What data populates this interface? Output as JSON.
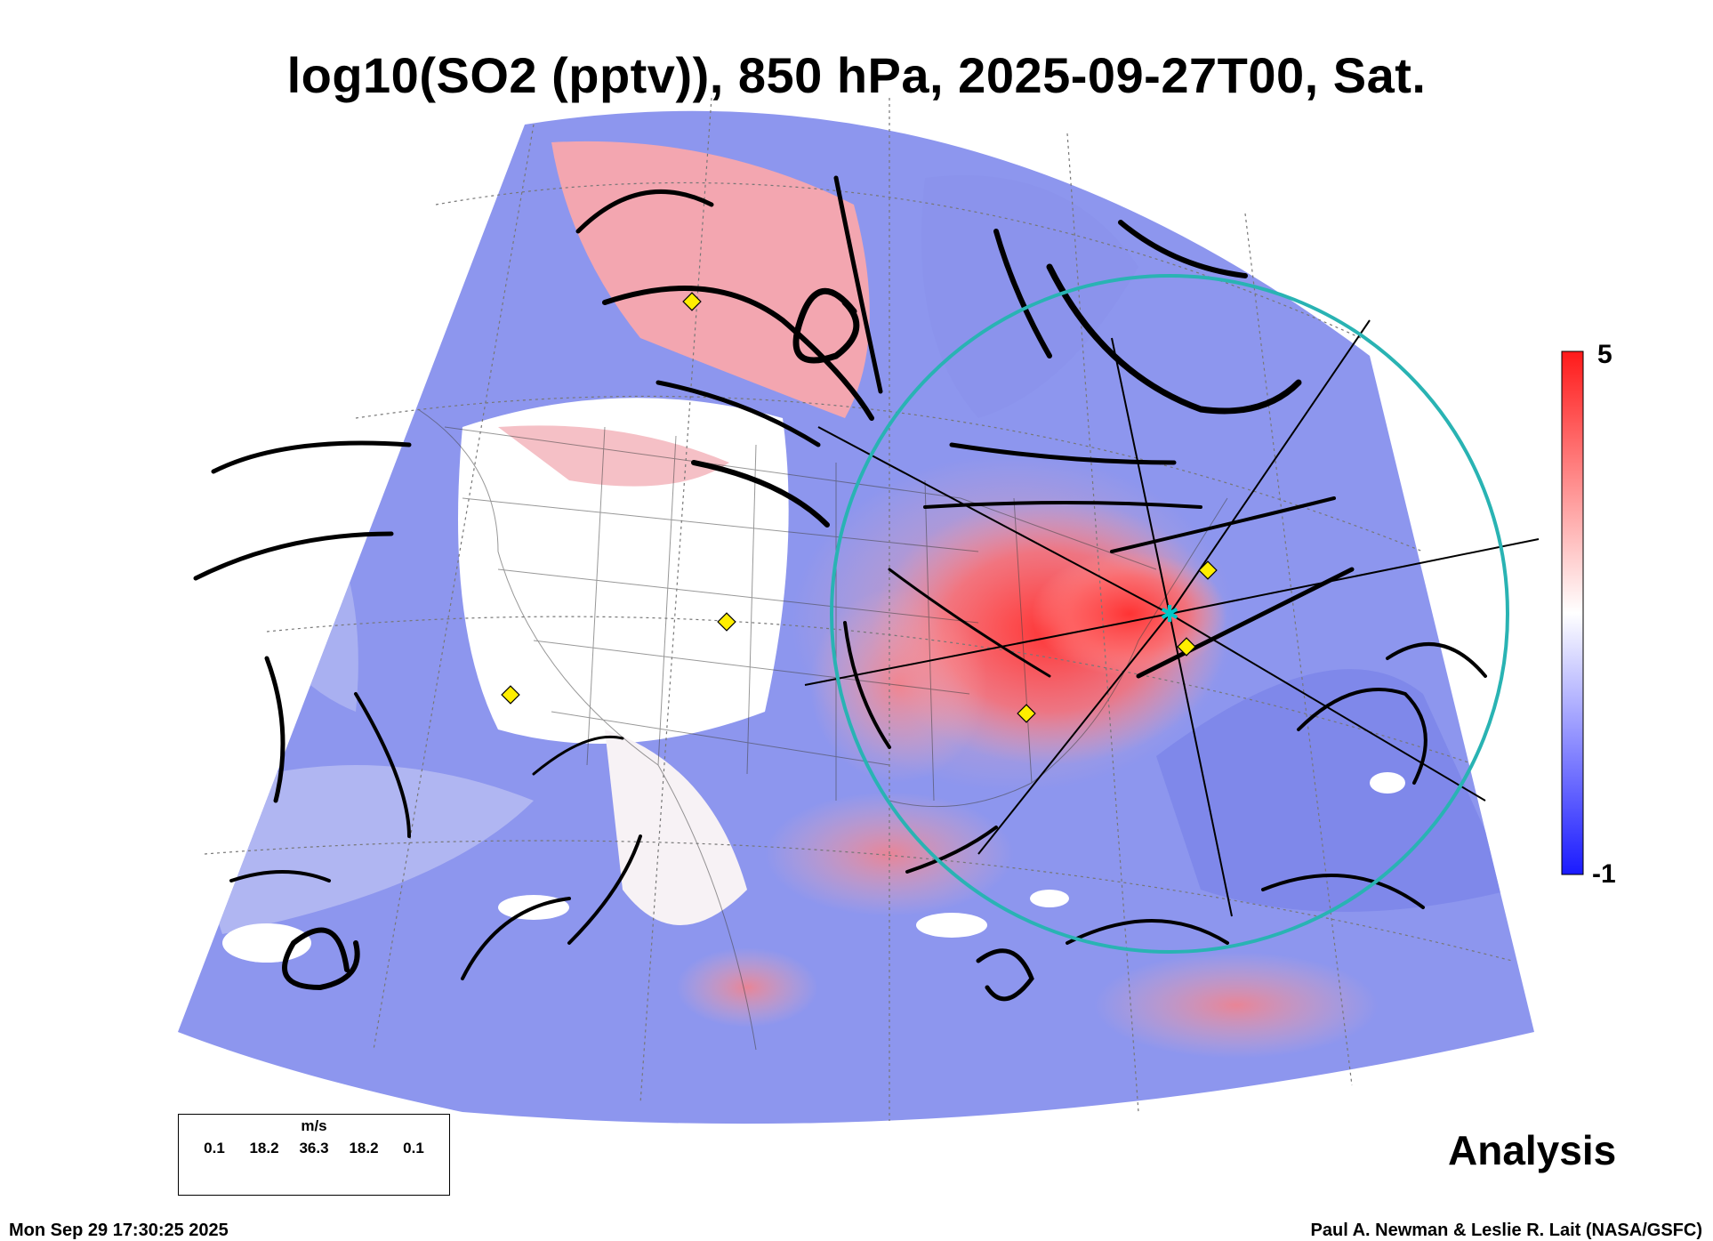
{
  "title": "log10(SO2 (pptv)), 850 hPa, 2025-09-27T00, Sat.",
  "colorbar": {
    "max_label": "5",
    "min_label": "-1",
    "colors": {
      "top": "#ff1a1a",
      "mid": "#ffffff",
      "bottom": "#1a1aff"
    }
  },
  "analysis_label": "Analysis",
  "wind_legend": {
    "unit": "m/s",
    "ticks": [
      "0.1",
      "18.2",
      "36.3",
      "18.2",
      "0.1"
    ]
  },
  "footer": {
    "timestamp": "Mon Sep 29 17:30:25 2025",
    "credit": "Paul A. Newman & Leslie R. Lait (NASA/GSFC)"
  },
  "map": {
    "circle_color": "#29b3b3",
    "marker_color": "#ffee00",
    "center_marker_color": "#00c8c8",
    "markers": [
      "marker-north-canada",
      "marker-colorado",
      "marker-southern-california",
      "marker-new-york",
      "marker-washington-dc",
      "marker-alabama"
    ]
  }
}
